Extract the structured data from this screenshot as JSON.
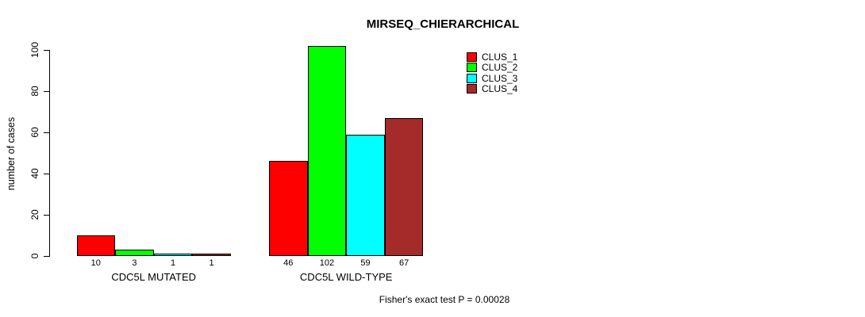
{
  "chart_data": {
    "type": "bar",
    "title": "MIRSEQ_CHIERARCHICAL",
    "xlabel": "",
    "ylabel": "number of cases",
    "ylim": [
      0,
      100
    ],
    "yticks": [
      0,
      20,
      40,
      60,
      80,
      100
    ],
    "categories": [
      "CDC5L MUTATED",
      "CDC5L WILD-TYPE"
    ],
    "series": [
      {
        "name": "CLUS_1",
        "color": "#ff0000",
        "values": [
          10,
          46
        ]
      },
      {
        "name": "CLUS_2",
        "color": "#00ff00",
        "values": [
          3,
          102
        ]
      },
      {
        "name": "CLUS_3",
        "color": "#00ffff",
        "values": [
          1,
          59
        ]
      },
      {
        "name": "CLUS_4",
        "color": "#a52a2a",
        "values": [
          1,
          67
        ]
      }
    ],
    "bar_value_labels": [
      [
        "10",
        "3",
        "1",
        "1"
      ],
      [
        "46",
        "102",
        "59",
        "67"
      ]
    ],
    "annotation": "Fisher's exact test P = 0.00028",
    "legend_position": "top-right",
    "grid": false,
    "background_color": "#ffffff",
    "axis_color": "#000000"
  }
}
